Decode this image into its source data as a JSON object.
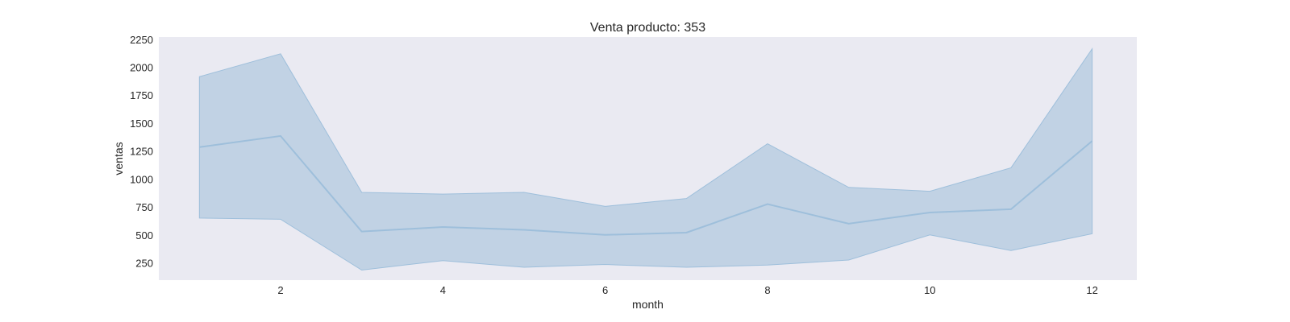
{
  "chart_data": {
    "type": "line",
    "title": "Venta producto: 353",
    "xlabel": "month",
    "ylabel": "ventas",
    "xlim": [
      0.5,
      12.55
    ],
    "ylim": [
      95,
      2270
    ],
    "x_ticks": [
      2,
      4,
      6,
      8,
      10,
      12
    ],
    "y_ticks": [
      250,
      500,
      750,
      1000,
      1250,
      1500,
      1750,
      2000,
      2250
    ],
    "grid": false,
    "legend": "none",
    "series": [
      {
        "x": [
          1,
          2,
          3,
          4,
          5,
          6,
          7,
          8,
          9,
          10,
          11,
          12
        ],
        "values": [
          1285,
          1385,
          530,
          570,
          545,
          500,
          520,
          775,
          600,
          700,
          730,
          1340
        ],
        "band_lower": [
          650,
          640,
          185,
          270,
          210,
          235,
          210,
          230,
          275,
          500,
          360,
          510
        ],
        "band_upper": [
          1915,
          2120,
          880,
          865,
          880,
          755,
          825,
          1315,
          925,
          890,
          1100,
          2165
        ]
      }
    ],
    "colors": {
      "plot_background": "#eaeaf2",
      "line": "#9ebfdb",
      "band": "#c1d2e4"
    }
  }
}
